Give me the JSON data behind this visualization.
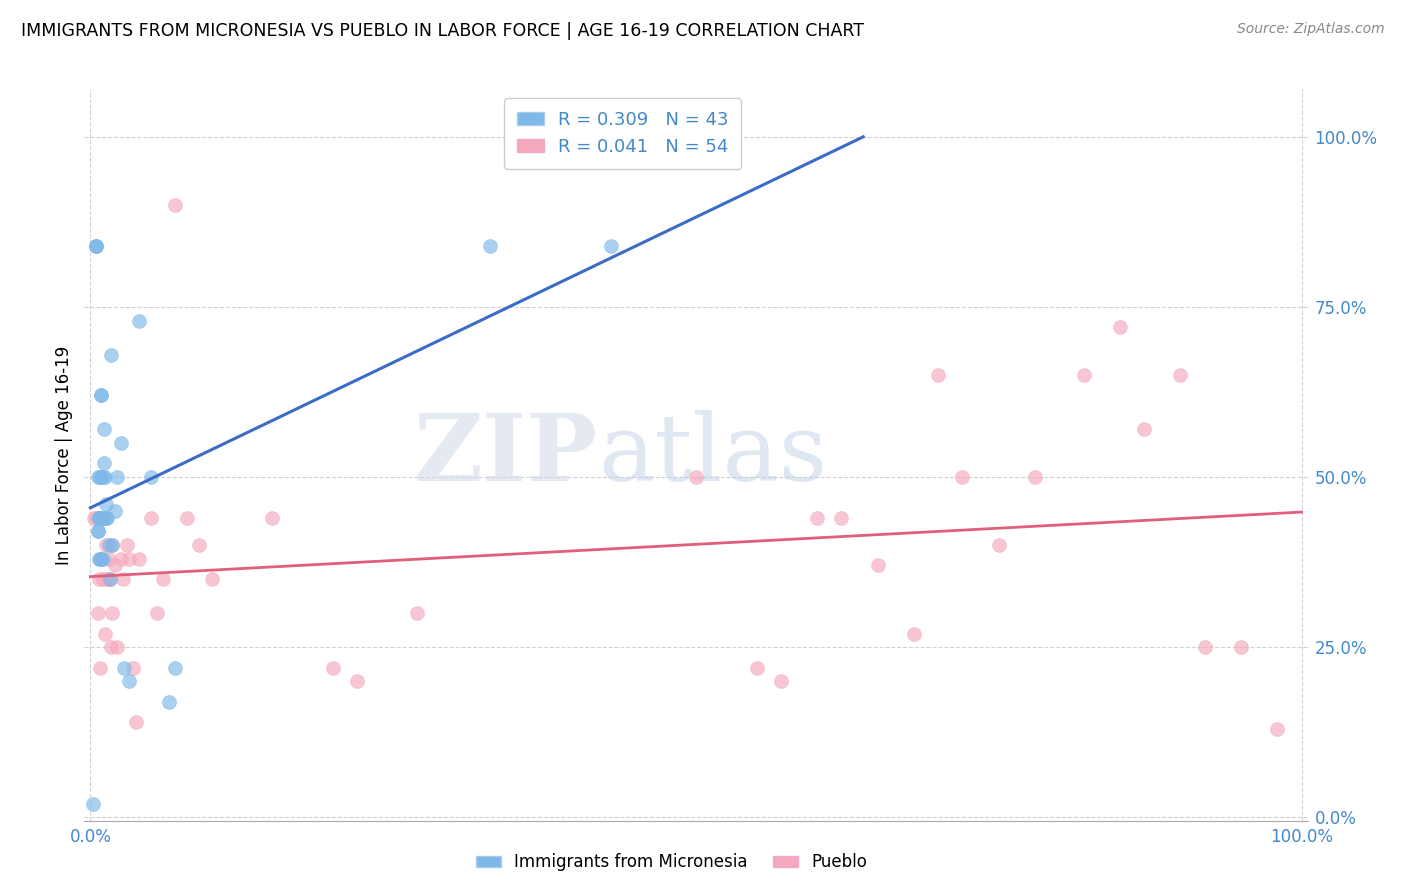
{
  "title": "IMMIGRANTS FROM MICRONESIA VS PUEBLO IN LABOR FORCE | AGE 16-19 CORRELATION CHART",
  "source": "Source: ZipAtlas.com",
  "ylabel": "In Labor Force | Age 16-19",
  "yticks_labels": [
    "0.0%",
    "25.0%",
    "50.0%",
    "75.0%",
    "100.0%"
  ],
  "ytick_values": [
    0.0,
    0.25,
    0.5,
    0.75,
    1.0
  ],
  "xtick_labels": [
    "0.0%",
    "100.0%"
  ],
  "xtick_values": [
    0.0,
    1.0
  ],
  "blue_R": 0.309,
  "blue_N": 43,
  "pink_R": 0.041,
  "pink_N": 54,
  "blue_color": "#7db8e8",
  "pink_color": "#f5a8bc",
  "blue_line_color": "#3a6cc8",
  "pink_line_color": "#e0607a",
  "tick_color": "#4488cc",
  "watermark_zip": "ZIP",
  "watermark_atlas": "atlas",
  "blue_x": [
    0.002,
    0.005,
    0.005,
    0.005,
    0.006,
    0.006,
    0.006,
    0.007,
    0.007,
    0.007,
    0.007,
    0.008,
    0.008,
    0.008,
    0.008,
    0.009,
    0.009,
    0.009,
    0.009,
    0.01,
    0.01,
    0.01,
    0.011,
    0.011,
    0.012,
    0.013,
    0.013,
    0.014,
    0.015,
    0.016,
    0.017,
    0.018,
    0.02,
    0.022,
    0.025,
    0.028,
    0.032,
    0.04,
    0.05,
    0.065,
    0.07,
    0.33,
    0.43
  ],
  "blue_y": [
    0.02,
    0.84,
    0.84,
    0.84,
    0.42,
    0.42,
    0.5,
    0.44,
    0.44,
    0.44,
    0.38,
    0.5,
    0.44,
    0.44,
    0.38,
    0.62,
    0.62,
    0.5,
    0.38,
    0.5,
    0.44,
    0.38,
    0.57,
    0.52,
    0.5,
    0.46,
    0.44,
    0.44,
    0.4,
    0.35,
    0.68,
    0.4,
    0.45,
    0.5,
    0.55,
    0.22,
    0.2,
    0.73,
    0.5,
    0.17,
    0.22,
    0.84,
    0.84
  ],
  "pink_x": [
    0.003,
    0.005,
    0.006,
    0.007,
    0.008,
    0.009,
    0.01,
    0.01,
    0.012,
    0.013,
    0.014,
    0.015,
    0.016,
    0.017,
    0.018,
    0.018,
    0.02,
    0.022,
    0.025,
    0.027,
    0.03,
    0.032,
    0.035,
    0.038,
    0.04,
    0.05,
    0.055,
    0.06,
    0.07,
    0.08,
    0.09,
    0.1,
    0.15,
    0.2,
    0.22,
    0.27,
    0.5,
    0.55,
    0.57,
    0.6,
    0.62,
    0.65,
    0.68,
    0.7,
    0.72,
    0.75,
    0.78,
    0.82,
    0.85,
    0.87,
    0.9,
    0.92,
    0.95,
    0.98
  ],
  "pink_y": [
    0.44,
    0.44,
    0.3,
    0.35,
    0.22,
    0.38,
    0.44,
    0.35,
    0.27,
    0.4,
    0.35,
    0.38,
    0.35,
    0.25,
    0.4,
    0.3,
    0.37,
    0.25,
    0.38,
    0.35,
    0.4,
    0.38,
    0.22,
    0.14,
    0.38,
    0.44,
    0.3,
    0.35,
    0.9,
    0.44,
    0.4,
    0.35,
    0.44,
    0.22,
    0.2,
    0.3,
    0.5,
    0.22,
    0.2,
    0.44,
    0.44,
    0.37,
    0.27,
    0.65,
    0.5,
    0.4,
    0.5,
    0.65,
    0.72,
    0.57,
    0.65,
    0.25,
    0.25,
    0.13
  ]
}
